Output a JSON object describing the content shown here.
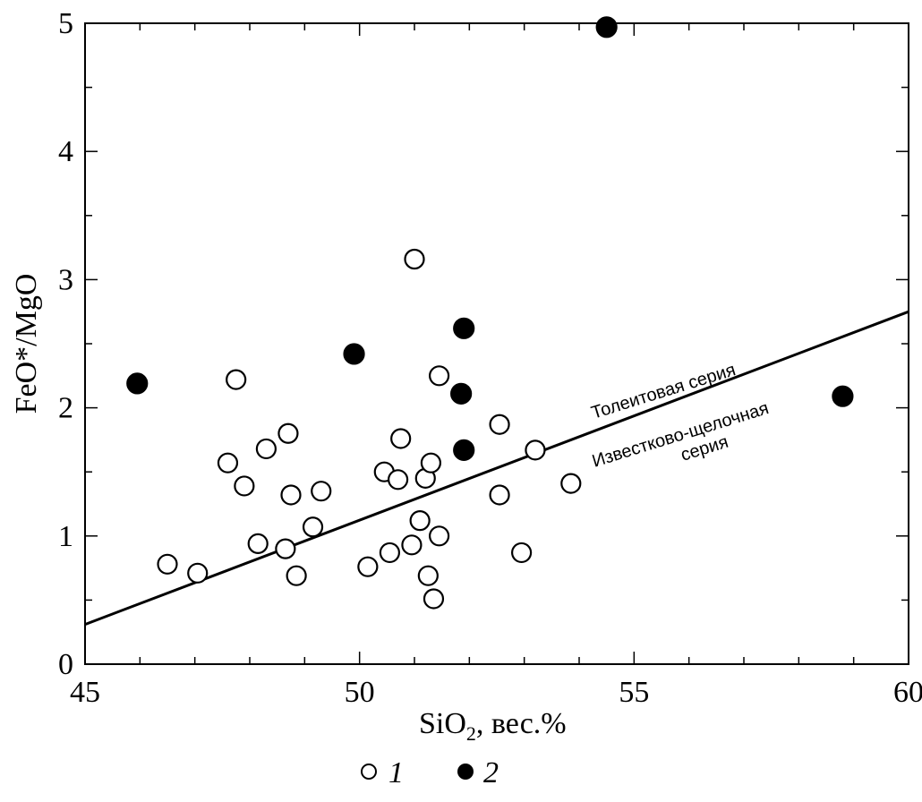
{
  "chart_data": {
    "type": "scatter",
    "xlabel": "SiO",
    "xlabel_sub": "2",
    "xlabel_suffix": ", вес.%",
    "ylabel": "FeO*/MgO",
    "xlim": [
      45,
      60
    ],
    "ylim": [
      0,
      5
    ],
    "x_ticks": [
      45,
      50,
      55,
      60
    ],
    "y_ticks": [
      0,
      1,
      2,
      3,
      4,
      5
    ],
    "grid": false,
    "divider_line": {
      "x": [
        45,
        60
      ],
      "y": [
        0.31,
        2.75
      ]
    },
    "annotations": {
      "upper": "Толеитовая серия",
      "lower_1": "Известково-щелочная",
      "lower_2": "серия"
    },
    "legend": {
      "placement": "bottom-center",
      "series_1_label": "1",
      "series_2_label": "2"
    },
    "series": [
      {
        "name": "1",
        "marker": "open-circle",
        "points": [
          [
            46.5,
            0.78
          ],
          [
            47.05,
            0.71
          ],
          [
            47.6,
            1.57
          ],
          [
            47.75,
            2.22
          ],
          [
            47.9,
            1.39
          ],
          [
            48.15,
            0.94
          ],
          [
            48.3,
            1.68
          ],
          [
            48.65,
            0.9
          ],
          [
            48.7,
            1.8
          ],
          [
            48.75,
            1.32
          ],
          [
            48.85,
            0.69
          ],
          [
            49.15,
            1.07
          ],
          [
            49.3,
            1.35
          ],
          [
            50.15,
            0.76
          ],
          [
            50.45,
            1.5
          ],
          [
            50.55,
            0.87
          ],
          [
            50.7,
            1.44
          ],
          [
            50.75,
            1.76
          ],
          [
            50.95,
            0.93
          ],
          [
            51.0,
            3.16
          ],
          [
            51.1,
            1.12
          ],
          [
            51.2,
            1.45
          ],
          [
            51.25,
            0.69
          ],
          [
            51.3,
            1.57
          ],
          [
            51.35,
            0.51
          ],
          [
            51.45,
            2.25
          ],
          [
            51.45,
            1.0
          ],
          [
            52.55,
            1.87
          ],
          [
            52.55,
            1.32
          ],
          [
            52.95,
            0.87
          ],
          [
            53.2,
            1.67
          ],
          [
            53.85,
            1.41
          ]
        ]
      },
      {
        "name": "2",
        "marker": "filled-circle",
        "points": [
          [
            45.95,
            2.19
          ],
          [
            49.9,
            2.42
          ],
          [
            51.85,
            2.11
          ],
          [
            51.9,
            2.62
          ],
          [
            51.9,
            1.67
          ],
          [
            54.5,
            4.97
          ],
          [
            58.8,
            2.09
          ]
        ]
      }
    ]
  }
}
